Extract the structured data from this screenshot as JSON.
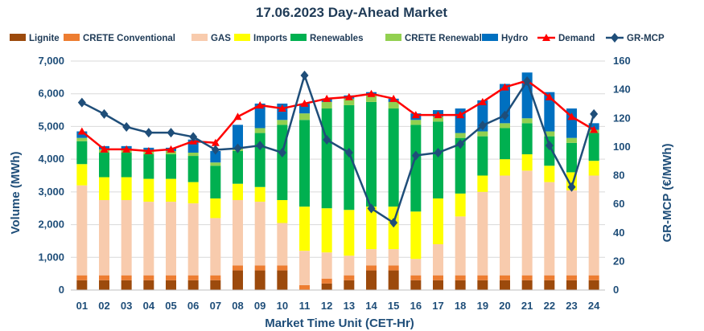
{
  "chart_data": {
    "type": "bar",
    "subtype": "stacked-bar-with-lines",
    "title": "17.06.2023  Day-Ahead Market",
    "xlabel": "Market Time Unit (CET-Hr)",
    "ylabel": "Volume (MWh)",
    "y2label": "GR-MCP (€/MWh)",
    "ylim": [
      0,
      7000
    ],
    "y2lim": [
      0,
      160
    ],
    "yticks": [
      "0",
      "1,000",
      "2,000",
      "3,000",
      "4,000",
      "5,000",
      "6,000",
      "7,000"
    ],
    "y2ticks": [
      "0",
      "20",
      "40",
      "60",
      "80",
      "100",
      "120",
      "140",
      "160"
    ],
    "categories": [
      "01",
      "02",
      "03",
      "04",
      "05",
      "06",
      "07",
      "08",
      "09",
      "10",
      "11",
      "12",
      "13",
      "14",
      "15",
      "16",
      "17",
      "18",
      "19",
      "20",
      "21",
      "22",
      "23",
      "24"
    ],
    "series": [
      {
        "name": "Lignite",
        "color": "#9c4a0c",
        "values": [
          300,
          300,
          300,
          300,
          300,
          300,
          300,
          600,
          600,
          600,
          0,
          200,
          300,
          600,
          600,
          300,
          300,
          300,
          300,
          300,
          300,
          300,
          300,
          300
        ]
      },
      {
        "name": "CRETE Conventional",
        "color": "#ed7d31",
        "values": [
          150,
          150,
          150,
          150,
          150,
          150,
          150,
          150,
          150,
          150,
          150,
          150,
          150,
          150,
          150,
          150,
          150,
          150,
          150,
          150,
          150,
          150,
          150,
          150
        ]
      },
      {
        "name": "GAS",
        "color": "#f8cbad",
        "values": [
          2750,
          2300,
          2300,
          2250,
          2250,
          2200,
          1750,
          2000,
          1950,
          1300,
          1050,
          800,
          600,
          500,
          500,
          500,
          950,
          1800,
          2550,
          3050,
          3200,
          2850,
          2600,
          3050
        ]
      },
      {
        "name": "Imports",
        "color": "#ffff00",
        "values": [
          650,
          700,
          700,
          700,
          700,
          650,
          600,
          500,
          450,
          700,
          1350,
          1350,
          1400,
          1300,
          1300,
          1450,
          1400,
          700,
          500,
          500,
          500,
          500,
          550,
          450
        ]
      },
      {
        "name": "Renewables",
        "color": "#00b050",
        "values": [
          700,
          750,
          750,
          750,
          750,
          800,
          1000,
          1000,
          1650,
          2300,
          2650,
          3050,
          3200,
          3200,
          3000,
          2650,
          2350,
          1700,
          1200,
          950,
          950,
          900,
          900,
          850
        ]
      },
      {
        "name": "CRETE Renewables",
        "color": "#92d050",
        "values": [
          100,
          100,
          100,
          100,
          100,
          100,
          100,
          100,
          150,
          150,
          200,
          200,
          200,
          200,
          200,
          150,
          150,
          150,
          150,
          150,
          150,
          150,
          150,
          100
        ]
      },
      {
        "name": "Hydro",
        "color": "#0070c0",
        "values": [
          200,
          100,
          100,
          100,
          100,
          400,
          350,
          700,
          750,
          500,
          300,
          100,
          100,
          100,
          100,
          200,
          200,
          750,
          950,
          1200,
          1400,
          1200,
          900,
          200
        ]
      }
    ],
    "lines": [
      {
        "name": "Demand",
        "color": "#ff0000",
        "marker": "triangle",
        "axis": "left",
        "values": [
          4850,
          4300,
          4300,
          4250,
          4300,
          4550,
          4500,
          5300,
          5650,
          5550,
          5700,
          5850,
          5900,
          6000,
          5850,
          5350,
          5350,
          5350,
          5750,
          6200,
          6400,
          5900,
          5300,
          4900
        ]
      },
      {
        "name": "GR-MCP",
        "color": "#1f4e79",
        "marker": "diamond",
        "axis": "right",
        "values": [
          131,
          123,
          114,
          110,
          110,
          107,
          98,
          99,
          101,
          96,
          150,
          105,
          96,
          57,
          47,
          94,
          96,
          102,
          115,
          122,
          146,
          101,
          72,
          123
        ]
      }
    ],
    "legend_position": "top"
  }
}
